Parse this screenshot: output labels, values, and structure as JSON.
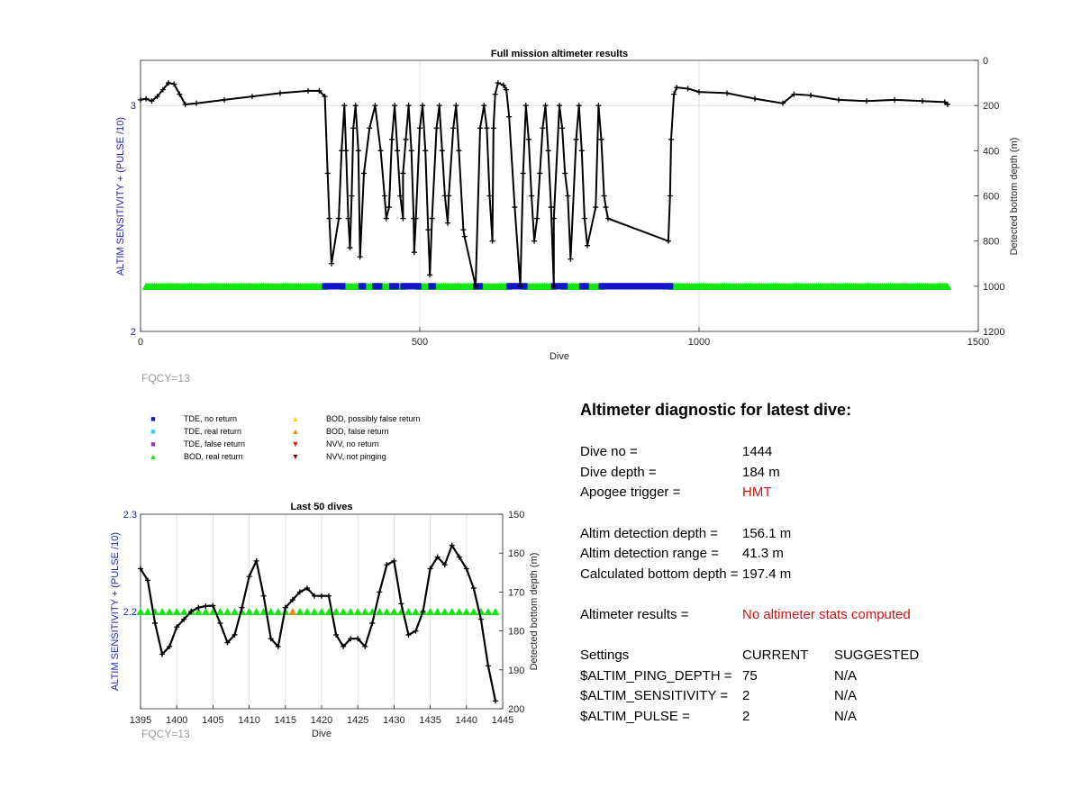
{
  "main_chart": {
    "title": "Full mission altimeter results",
    "xlabel": "Dive",
    "ylabel_left": "ALTIM SENSITIVITY + (PULSE /10)",
    "ylabel_right": "Detected bottom depth (m)",
    "x_ticks": [
      "0",
      "500",
      "1000",
      "1500"
    ],
    "y_left_ticks": [
      "2",
      "3"
    ],
    "y_right_ticks": [
      "0",
      "200",
      "400",
      "600",
      "800",
      "1000",
      "1200"
    ],
    "fqcy_label": "FQCY=13"
  },
  "recent_chart": {
    "title": "Last 50 dives",
    "xlabel": "Dive",
    "ylabel_left": "ALTIM SENSITIVITY + (PULSE /10)",
    "ylabel_right": "Detected bottom depth (m)",
    "x_ticks": [
      "1395",
      "1400",
      "1405",
      "1410",
      "1415",
      "1420",
      "1425",
      "1430",
      "1435",
      "1440",
      "1445"
    ],
    "y_left_ticks": [
      "2.3",
      "2.2"
    ],
    "y_right_ticks": [
      "150",
      "160",
      "170",
      "180",
      "190",
      "200"
    ],
    "fqcy_label": "FQCY=13"
  },
  "legend": [
    {
      "label": "TDE, no return",
      "symbol": "■",
      "color": "#1414c8"
    },
    {
      "label": "TDE, real return",
      "symbol": "■",
      "color": "#28d2f0"
    },
    {
      "label": "TDE, false return",
      "symbol": "■",
      "color": "#8c3cc8"
    },
    {
      "label": "BOD, real return",
      "symbol": "▲",
      "color": "#14e614"
    },
    {
      "label": "BOD, possibly false return",
      "symbol": "▲",
      "color": "#f0d214"
    },
    {
      "label": "BOD, false return",
      "symbol": "▲",
      "color": "#f08c14"
    },
    {
      "label": "NVV, no return",
      "symbol": "▼",
      "color": "#e61414"
    },
    {
      "label": "NVV, not pinging",
      "symbol": "▼",
      "color": "#8c0a0a"
    }
  ],
  "diagnostic": {
    "title": "Altimeter diagnostic for latest dive:",
    "dive_no_label": "Dive no =",
    "dive_no": "1444",
    "dive_depth_label": "Dive depth =",
    "dive_depth": "184 m",
    "apogee_label": "Apogee trigger =",
    "apogee": "HMT",
    "detect_depth_label": "Altim detection depth =",
    "detect_depth": "156.1 m",
    "detect_range_label": "Altim detection range =",
    "detect_range": "41.3 m",
    "calc_bottom_label": "Calculated bottom depth =",
    "calc_bottom": "197.4 m",
    "results_label": "Altimeter results =",
    "results": "No altimeter stats computed",
    "settings_label": "Settings",
    "current_label": "CURRENT",
    "suggested_label": "SUGGESTED",
    "settings": [
      {
        "name": "$ALTIM_PING_DEPTH =",
        "current": "75",
        "suggested": "N/A"
      },
      {
        "name": "$ALTIM_SENSITIVITY =",
        "current": "2",
        "suggested": "N/A"
      },
      {
        "name": "$ALTIM_PULSE =",
        "current": "2",
        "suggested": "N/A"
      }
    ]
  },
  "chart_data": [
    {
      "type": "scatter",
      "title": "Full mission altimeter results",
      "xlabel": "Dive",
      "ylabel": "ALTIM SENSITIVITY + (PULSE /10)",
      "y2label": "Detected bottom depth (m)",
      "xlim": [
        0,
        1500
      ],
      "ylim": [
        2,
        3.2
      ],
      "y2lim": [
        1200,
        0
      ],
      "y2_reversed": true,
      "grid": true,
      "series": [
        {
          "name": "Detected bottom depth",
          "axis": "right",
          "color": "#000000",
          "points": [
            [
              0,
              175
            ],
            [
              10,
              170
            ],
            [
              20,
              180
            ],
            [
              30,
              160
            ],
            [
              40,
              130
            ],
            [
              50,
              100
            ],
            [
              60,
              105
            ],
            [
              70,
              150
            ],
            [
              80,
              195
            ],
            [
              100,
              190
            ],
            [
              150,
              175
            ],
            [
              200,
              160
            ],
            [
              250,
              145
            ],
            [
              300,
              135
            ],
            [
              320,
              135
            ],
            [
              330,
              160
            ],
            [
              335,
              500
            ],
            [
              338,
              700
            ],
            [
              342,
              900
            ],
            [
              355,
              700
            ],
            [
              360,
              400
            ],
            [
              365,
              200
            ],
            [
              368,
              400
            ],
            [
              372,
              700
            ],
            [
              375,
              830
            ],
            [
              378,
              600
            ],
            [
              381,
              300
            ],
            [
              385,
              200
            ],
            [
              390,
              400
            ],
            [
              393,
              870
            ],
            [
              400,
              500
            ],
            [
              410,
              300
            ],
            [
              420,
              200
            ],
            [
              430,
              400
            ],
            [
              437,
              600
            ],
            [
              440,
              700
            ],
            [
              445,
              650
            ],
            [
              450,
              350
            ],
            [
              455,
              200
            ],
            [
              460,
              400
            ],
            [
              465,
              600
            ],
            [
              470,
              700
            ],
            [
              470,
              500
            ],
            [
              475,
              350
            ],
            [
              480,
              200
            ],
            [
              485,
              400
            ],
            [
              489,
              700
            ],
            [
              490,
              850
            ],
            [
              493,
              700
            ],
            [
              500,
              300
            ],
            [
              505,
              200
            ],
            [
              510,
              400
            ],
            [
              515,
              750
            ],
            [
              518,
              950
            ],
            [
              522,
              700
            ],
            [
              530,
              300
            ],
            [
              535,
              200
            ],
            [
              540,
              400
            ],
            [
              545,
              600
            ],
            [
              550,
              720
            ],
            [
              552,
              600
            ],
            [
              560,
              300
            ],
            [
              565,
              200
            ],
            [
              570,
              400
            ],
            [
              578,
              750
            ],
            [
              580,
              780
            ],
            [
              600,
              1000
            ],
            [
              608,
              300
            ],
            [
              615,
              200
            ],
            [
              620,
              300
            ],
            [
              625,
              600
            ],
            [
              630,
              800
            ],
            [
              632,
              300
            ],
            [
              635,
              150
            ],
            [
              640,
              100
            ],
            [
              650,
              110
            ],
            [
              655,
              130
            ],
            [
              660,
              250
            ],
            [
              670,
              650
            ],
            [
              680,
              1000
            ],
            [
              685,
              500
            ],
            [
              690,
              200
            ],
            [
              695,
              350
            ],
            [
              700,
              600
            ],
            [
              705,
              800
            ],
            [
              710,
              700
            ],
            [
              715,
              500
            ],
            [
              720,
              300
            ],
            [
              725,
              200
            ],
            [
              730,
              400
            ],
            [
              735,
              650
            ],
            [
              740,
              1000
            ],
            [
              740,
              700
            ],
            [
              750,
              200
            ],
            [
              755,
              300
            ],
            [
              760,
              500
            ],
            [
              765,
              600
            ],
            [
              770,
              880
            ],
            [
              780,
              350
            ],
            [
              785,
              200
            ],
            [
              790,
              400
            ],
            [
              795,
              700
            ],
            [
              800,
              820
            ],
            [
              815,
              650
            ],
            [
              820,
              200
            ],
            [
              825,
              350
            ],
            [
              830,
              600
            ],
            [
              833,
              650
            ],
            [
              837,
              700
            ],
            [
              945,
              800
            ],
            [
              948,
              600
            ],
            [
              950,
              350
            ],
            [
              955,
              150
            ],
            [
              960,
              120
            ],
            [
              980,
              125
            ],
            [
              1000,
              140
            ],
            [
              1050,
              145
            ],
            [
              1100,
              170
            ],
            [
              1150,
              190
            ],
            [
              1170,
              150
            ],
            [
              1200,
              155
            ],
            [
              1250,
              175
            ],
            [
              1300,
              180
            ],
            [
              1350,
              175
            ],
            [
              1400,
              180
            ],
            [
              1440,
              185
            ],
            [
              1445,
              195
            ]
          ]
        },
        {
          "name": "BOD, real return",
          "axis": "left",
          "color": "#14e614",
          "y": 2.2,
          "x_ranges": [
            [
              10,
              330
            ],
            [
              365,
              395
            ],
            [
              400,
              420
            ],
            [
              430,
              450
            ],
            [
              460,
              470
            ],
            [
              500,
              520
            ],
            [
              525,
              600
            ],
            [
              610,
              660
            ],
            [
              690,
              740
            ],
            [
              760,
              790
            ],
            [
              800,
              825
            ],
            [
              950,
              1445
            ]
          ]
        },
        {
          "name": "TDE, no return",
          "axis": "left",
          "color": "#1414c8",
          "y": 2.2,
          "x_ranges": [
            [
              330,
              365
            ],
            [
              395,
              400
            ],
            [
              420,
              430
            ],
            [
              450,
              460
            ],
            [
              470,
              500
            ],
            [
              520,
              525
            ],
            [
              600,
              610
            ],
            [
              660,
              690
            ],
            [
              740,
              760
            ],
            [
              790,
              800
            ],
            [
              825,
              950
            ]
          ]
        }
      ]
    },
    {
      "type": "line",
      "title": "Last 50 dives",
      "xlabel": "Dive",
      "ylabel": "ALTIM SENSITIVITY + (PULSE /10)",
      "y2label": "Detected bottom depth (m)",
      "xlim": [
        1395,
        1445
      ],
      "ylim": [
        2.1,
        2.3
      ],
      "y2lim": [
        200,
        150
      ],
      "y2_reversed": true,
      "grid": true,
      "series": [
        {
          "name": "Detected bottom depth",
          "axis": "right",
          "color": "#000000",
          "x": [
            1395,
            1396,
            1397,
            1398,
            1399,
            1400,
            1401,
            1402,
            1403,
            1404,
            1405,
            1406,
            1407,
            1408,
            1409,
            1410,
            1411,
            1412,
            1413,
            1414,
            1415,
            1416,
            1417,
            1418,
            1419,
            1420,
            1421,
            1422,
            1423,
            1424,
            1425,
            1426,
            1427,
            1428,
            1429,
            1430,
            1431,
            1432,
            1433,
            1434,
            1435,
            1436,
            1437,
            1438,
            1439,
            1440,
            1441,
            1442,
            1443,
            1444
          ],
          "values": [
            164,
            167,
            178,
            186,
            184,
            179,
            177,
            175,
            174,
            173.6,
            173.5,
            178,
            183,
            181,
            174,
            166,
            162,
            171,
            182,
            184,
            174,
            172,
            170,
            169,
            171,
            171,
            171,
            181,
            184,
            182,
            182,
            184,
            178,
            170,
            163,
            162,
            173,
            181,
            180,
            175,
            164,
            161,
            163,
            158,
            161,
            164,
            169,
            177,
            189,
            198
          ]
        },
        {
          "name": "BOD, real return",
          "axis": "left",
          "color": "#14e614",
          "x": [
            1395,
            1396,
            1397,
            1398,
            1399,
            1400,
            1401,
            1402,
            1403,
            1404,
            1405,
            1406,
            1407,
            1408,
            1409,
            1410,
            1411,
            1412,
            1413,
            1414,
            1415,
            1417,
            1418,
            1419,
            1420,
            1421,
            1422,
            1423,
            1424,
            1425,
            1426,
            1427,
            1428,
            1429,
            1430,
            1431,
            1432,
            1433,
            1434,
            1435,
            1436,
            1437,
            1438,
            1439,
            1440,
            1441,
            1442,
            1443,
            1444
          ],
          "values": [
            2.2,
            2.2,
            2.2,
            2.2,
            2.2,
            2.2,
            2.2,
            2.2,
            2.2,
            2.2,
            2.2,
            2.2,
            2.2,
            2.2,
            2.2,
            2.2,
            2.2,
            2.2,
            2.2,
            2.2,
            2.2,
            2.2,
            2.2,
            2.2,
            2.2,
            2.2,
            2.2,
            2.2,
            2.2,
            2.2,
            2.2,
            2.2,
            2.2,
            2.2,
            2.2,
            2.2,
            2.2,
            2.2,
            2.2,
            2.2,
            2.2,
            2.2,
            2.2,
            2.2,
            2.2,
            2.2,
            2.2,
            2.2,
            2.2
          ]
        },
        {
          "name": "BOD, false return",
          "axis": "left",
          "color": "#f08c14",
          "x": [
            1416
          ],
          "values": [
            2.2
          ]
        }
      ]
    }
  ]
}
